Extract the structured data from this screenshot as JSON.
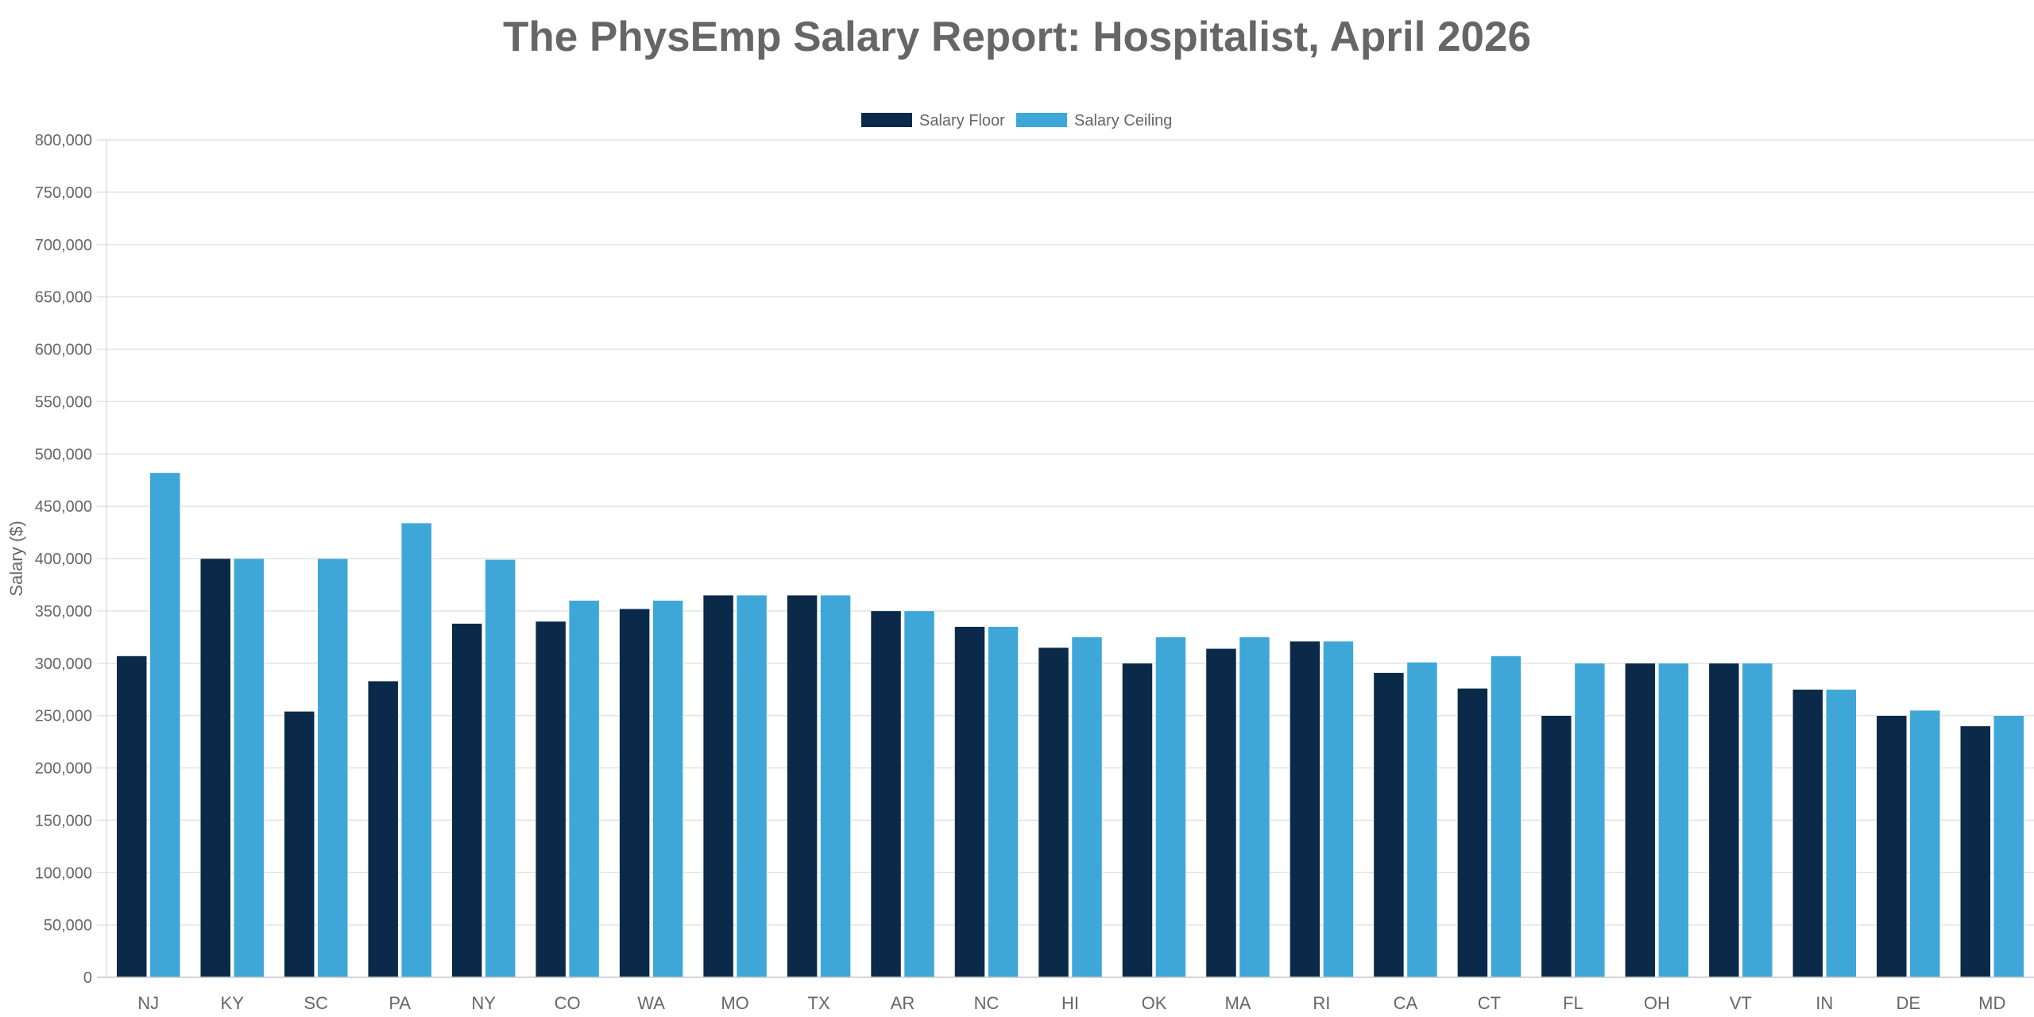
{
  "chart_data": {
    "type": "bar",
    "title": "The PhysEmp Salary Report: Hospitalist, April 2026",
    "xlabel": "",
    "ylabel": "Salary ($)",
    "ylim": [
      0,
      800000
    ],
    "yticks": [
      0,
      50000,
      100000,
      150000,
      200000,
      250000,
      300000,
      350000,
      400000,
      450000,
      500000,
      550000,
      600000,
      650000,
      700000,
      750000,
      800000
    ],
    "ytick_labels": [
      "0",
      "50,000",
      "100,000",
      "150,000",
      "200,000",
      "250,000",
      "300,000",
      "350,000",
      "400,000",
      "450,000",
      "500,000",
      "550,000",
      "600,000",
      "650,000",
      "700,000",
      "750,000",
      "800,000"
    ],
    "grid": true,
    "legend_position": "top-center",
    "categories": [
      "NJ",
      "KY",
      "SC",
      "PA",
      "NY",
      "CO",
      "WA",
      "MO",
      "TX",
      "AR",
      "NC",
      "HI",
      "OK",
      "MA",
      "RI",
      "CA",
      "CT",
      "FL",
      "OH",
      "VT",
      "IN",
      "DE",
      "MD"
    ],
    "series": [
      {
        "name": "Salary Floor",
        "color": "#0b2a4a",
        "values": [
          307000,
          400000,
          254000,
          283000,
          338000,
          340000,
          352000,
          365000,
          365000,
          350000,
          335000,
          315000,
          300000,
          314000,
          321000,
          291000,
          276000,
          250000,
          300000,
          300000,
          275000,
          250000,
          240000
        ]
      },
      {
        "name": "Salary Ceiling",
        "color": "#3fa7d8",
        "values": [
          482000,
          400000,
          400000,
          434000,
          399000,
          360000,
          360000,
          365000,
          365000,
          350000,
          335000,
          325000,
          325000,
          325000,
          321000,
          301000,
          307000,
          300000,
          300000,
          300000,
          275000,
          255000,
          250000
        ]
      }
    ]
  }
}
